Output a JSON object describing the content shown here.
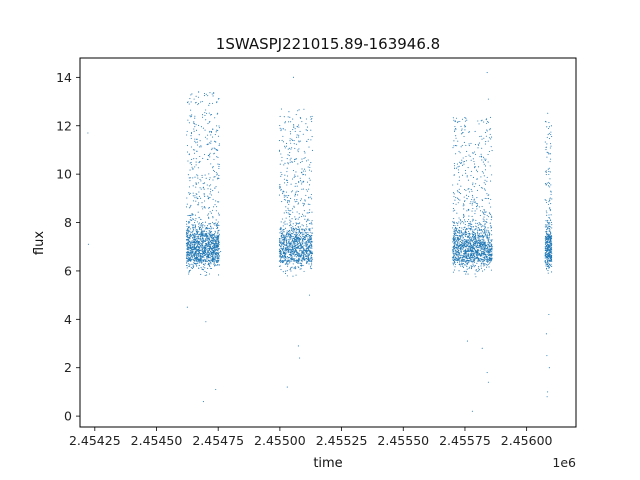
{
  "chart_data": {
    "type": "scatter",
    "title": "1SWASPJ221015.89-163946.8",
    "xlabel": "time",
    "ylabel": "flux",
    "x_offset_label": "1e6",
    "x_scale": 1000000,
    "xlim": [
      2.45419,
      2.4562
    ],
    "ylim": [
      -0.45,
      14.8
    ],
    "x_ticks": [
      2.45425,
      2.4545,
      2.45475,
      2.455,
      2.45525,
      2.4555,
      2.45575,
      2.456
    ],
    "x_tick_labels": [
      "2.45425",
      "2.45450",
      "2.45475",
      "2.45500",
      "2.45525",
      "2.45550",
      "2.45575",
      "2.45600"
    ],
    "y_ticks": [
      0,
      2,
      4,
      6,
      8,
      10,
      12,
      14
    ],
    "y_tick_labels": [
      "0",
      "2",
      "4",
      "6",
      "8",
      "10",
      "12",
      "14"
    ],
    "grid": false,
    "marker_color": "#1f77b4",
    "series": [
      {
        "segments": [
          {
            "x_start": 2454621,
            "x_end": 2454755,
            "n": 1500,
            "y_min": 5.2,
            "y_max": 13.4,
            "y_center": 7.0
          },
          {
            "x_start": 2454998,
            "x_end": 2455132,
            "n": 1200,
            "y_min": 5.0,
            "y_max": 12.7,
            "y_center": 7.0
          },
          {
            "x_start": 2455700,
            "x_end": 2455860,
            "n": 1500,
            "y_min": 5.0,
            "y_max": 12.4,
            "y_center": 7.0
          },
          {
            "x_start": 2456075,
            "x_end": 2456102,
            "n": 420,
            "y_min": 4.5,
            "y_max": 12.6,
            "y_center": 7.0
          }
        ],
        "outliers": [
          [
            2454222,
            11.7
          ],
          [
            2454224,
            7.1
          ],
          [
            2454625,
            4.5
          ],
          [
            2454690,
            0.6
          ],
          [
            2454740,
            1.1
          ],
          [
            2454700,
            3.9
          ],
          [
            2454760,
            6.8
          ],
          [
            2455055,
            14.0
          ],
          [
            2455080,
            2.4
          ],
          [
            2455075,
            2.9
          ],
          [
            2455030,
            1.2
          ],
          [
            2455120,
            5.0
          ],
          [
            2455780,
            0.2
          ],
          [
            2455840,
            14.2
          ],
          [
            2455845,
            13.1
          ],
          [
            2455840,
            1.8
          ],
          [
            2455845,
            1.4
          ],
          [
            2455820,
            2.8
          ],
          [
            2455760,
            3.1
          ],
          [
            2456085,
            1.0
          ],
          [
            2456083,
            0.8
          ],
          [
            2456092,
            2.0
          ],
          [
            2456082,
            2.5
          ],
          [
            2456080,
            3.4
          ],
          [
            2456090,
            4.2
          ]
        ]
      }
    ]
  }
}
